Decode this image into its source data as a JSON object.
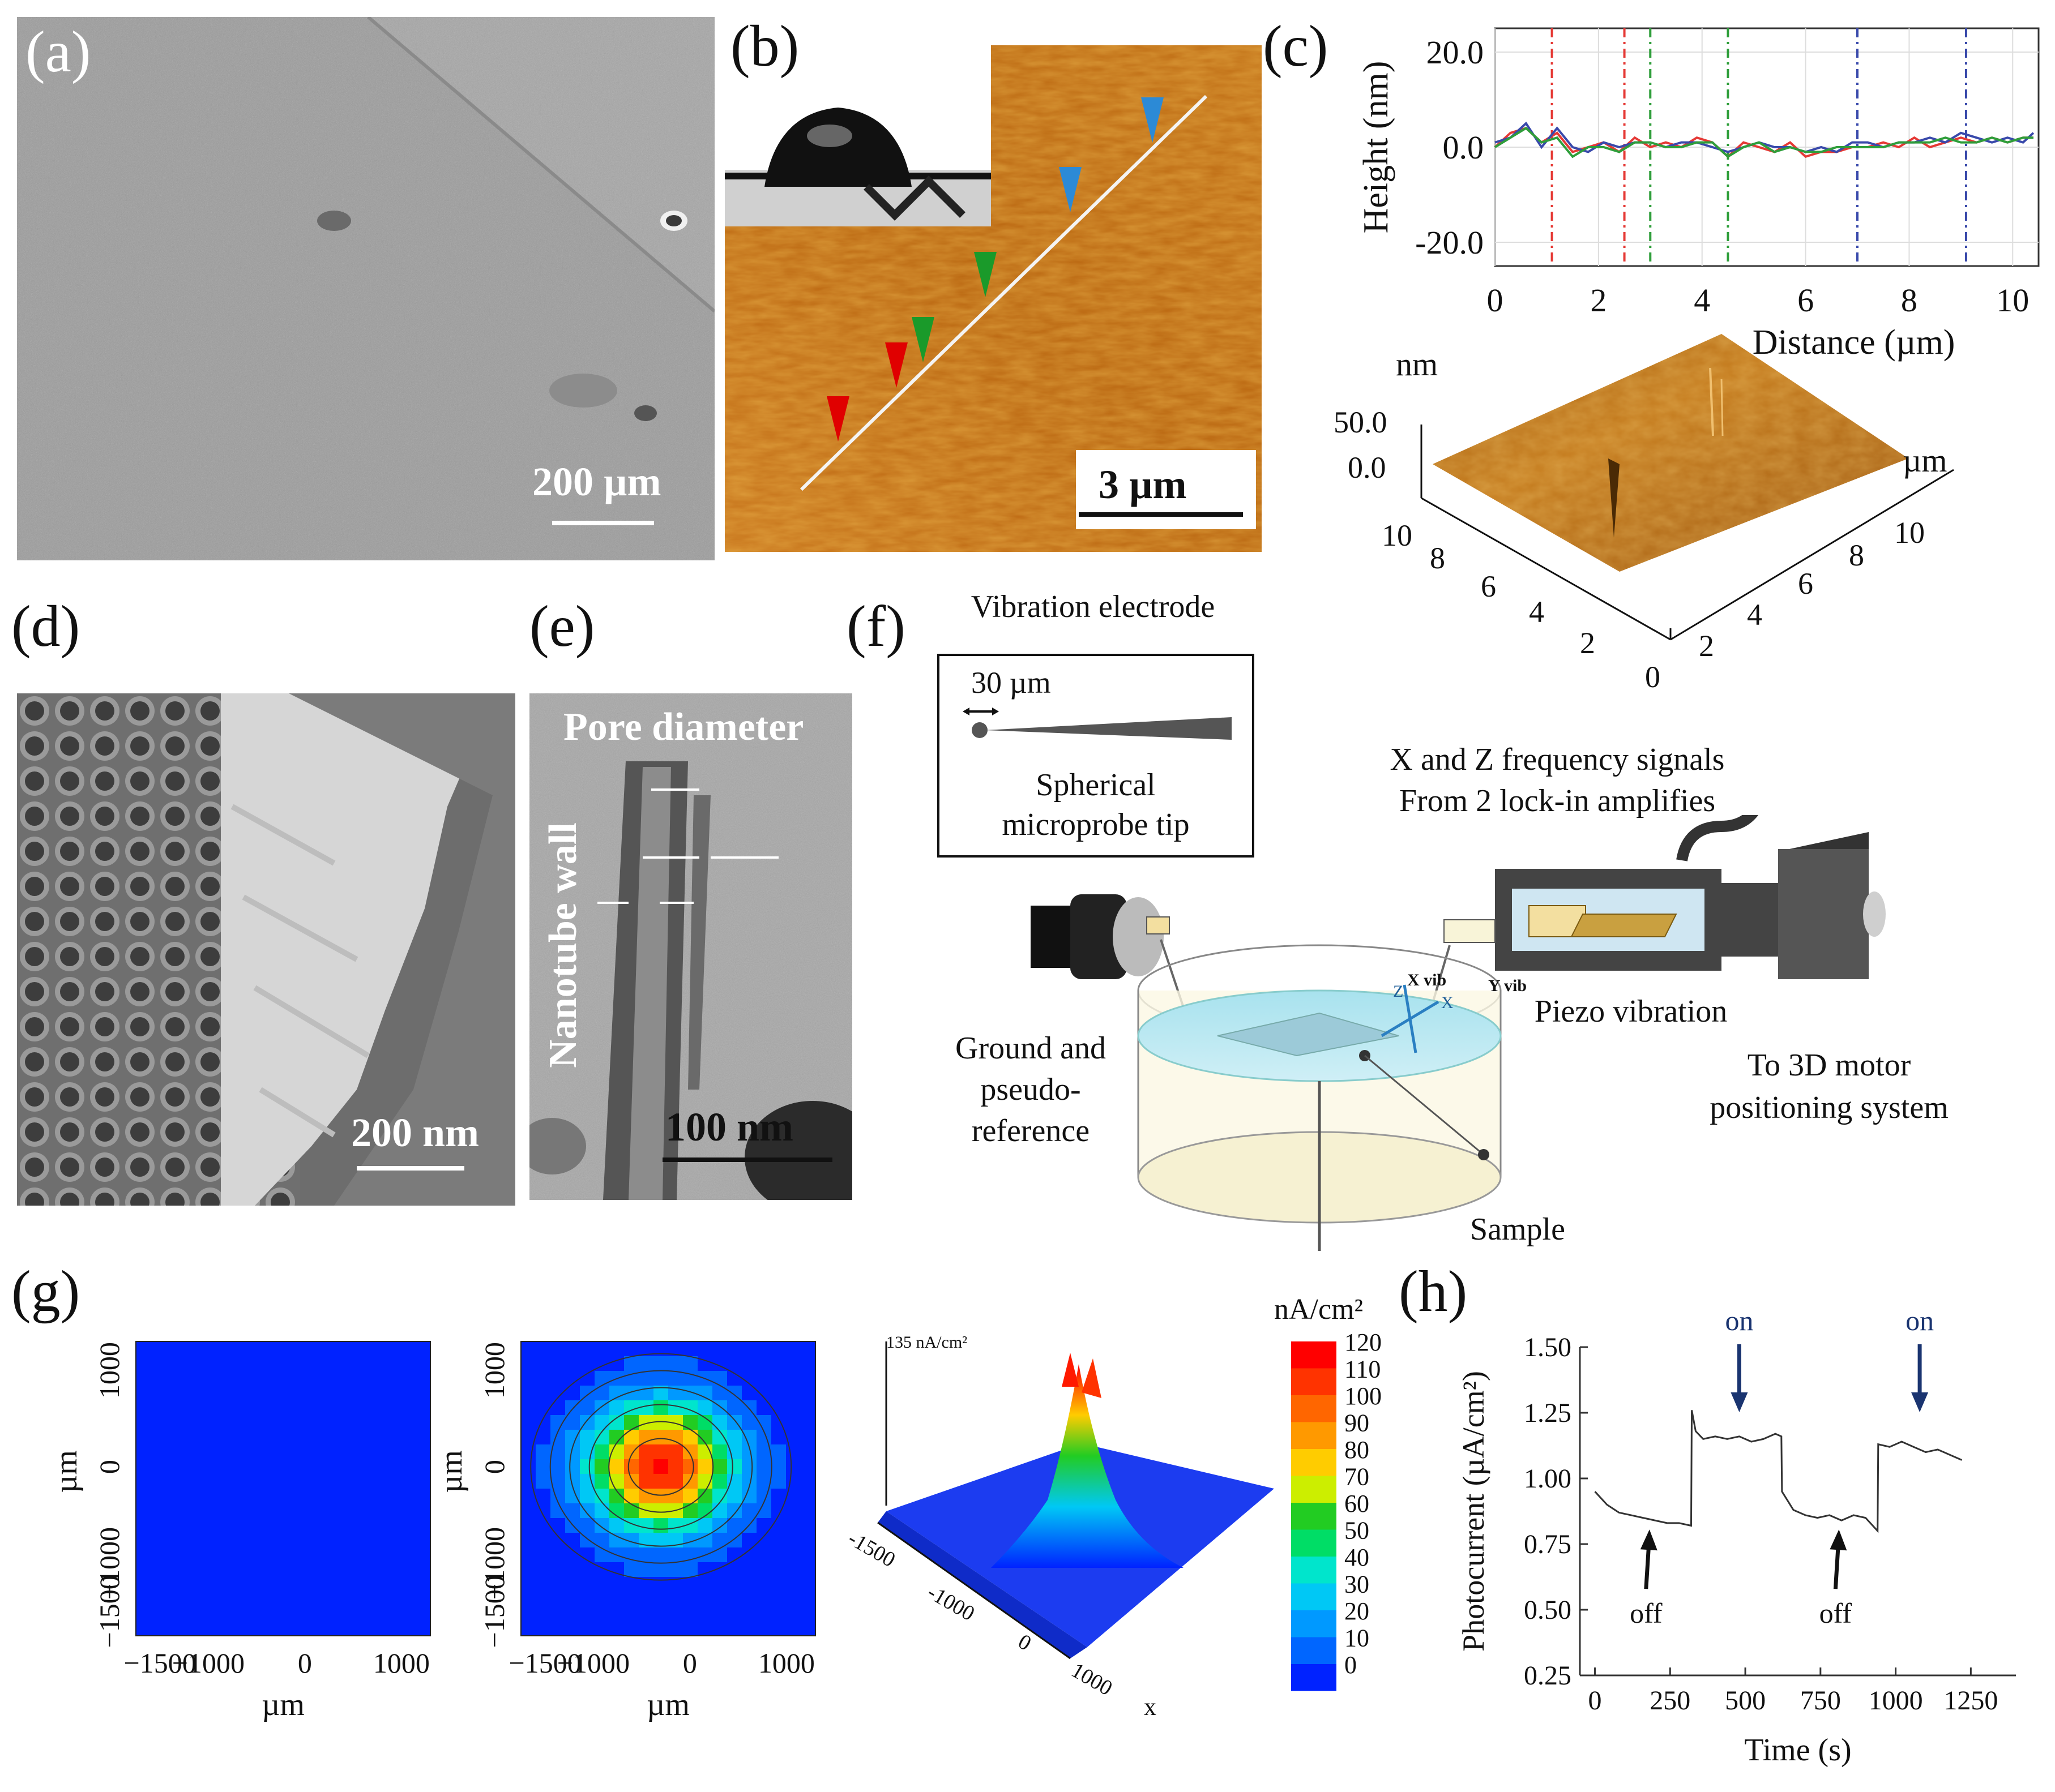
{
  "panels": {
    "a": {
      "label": "(a)",
      "scale": "200 µm"
    },
    "b": {
      "label": "(b)",
      "scale": "3 µm"
    },
    "c": {
      "label": "(c)"
    },
    "d": {
      "label": "(d)",
      "scale": "200 nm"
    },
    "e": {
      "label": "(e)",
      "scale": "100 nm",
      "pore_label": "Pore diameter",
      "wall_label": "Nanotube wall"
    },
    "f": {
      "label": "(f)",
      "title": "Vibration electrode",
      "tip_size": "30 µm",
      "tip_caption_1": "Spherical",
      "tip_caption_2": "microprobe tip",
      "signals_1": "X and Z frequency signals",
      "signals_2": "From 2 lock-in amplifies",
      "x_vib": "X vib",
      "y_vib": "Y vib",
      "axis_z": "Z",
      "axis_x": "X",
      "piezo": "Piezo vibration",
      "motor_1": "To 3D motor",
      "motor_2": "positioning system",
      "ground_1": "Ground and",
      "ground_2": "pseudo-",
      "ground_3": "reference",
      "sample": "Sample"
    },
    "g": {
      "label": "(g)",
      "axis_unit": "µm",
      "peak_label": "135 nA/cm²",
      "surf_x_label": "x",
      "colorbar_title": "nA/cm²"
    },
    "h": {
      "label": "(h)"
    }
  },
  "chart_data": [
    {
      "id": "c-profile",
      "type": "line",
      "title": "",
      "xlabel": "Distance (µm)",
      "ylabel": "Height (nm)",
      "xlim": [
        0,
        10.5
      ],
      "ylim": [
        -25,
        25
      ],
      "xticks": [
        0,
        2,
        4,
        6,
        8,
        10
      ],
      "yticks": [
        20.0,
        0.0,
        -20.0
      ],
      "ytick_labels": [
        "20.0",
        "0.0",
        "-20.0"
      ],
      "grid": true,
      "markers": [
        {
          "x": 1.1,
          "color": "#e53935"
        },
        {
          "x": 2.5,
          "color": "#e53935"
        },
        {
          "x": 3.0,
          "color": "#2e9e3a"
        },
        {
          "x": 4.5,
          "color": "#2e9e3a"
        },
        {
          "x": 7.0,
          "color": "#3949ab"
        },
        {
          "x": 9.1,
          "color": "#3949ab"
        }
      ],
      "series": [
        {
          "name": "red",
          "color": "#e53935",
          "x": [
            0,
            0.3,
            0.6,
            0.9,
            1.2,
            1.5,
            1.8,
            2.1,
            2.4,
            2.7,
            3.0,
            3.3,
            3.6,
            3.9,
            4.2,
            4.5,
            4.8,
            5.1,
            5.4,
            5.7,
            6.0,
            6.3,
            6.6,
            6.9,
            7.2,
            7.5,
            7.8,
            8.1,
            8.4,
            8.7,
            9.0,
            9.3,
            9.6,
            9.9,
            10.2,
            10.4
          ],
          "values": [
            0,
            3,
            4,
            1,
            3,
            -1,
            0,
            1,
            -1,
            2,
            0,
            1,
            0,
            2,
            1,
            -2,
            1,
            0,
            -1,
            1,
            -2,
            -1,
            -1,
            0,
            0,
            1,
            0,
            2,
            0,
            1,
            2,
            1,
            2,
            1,
            2,
            2
          ]
        },
        {
          "name": "blue",
          "color": "#3949ab",
          "x": [
            0,
            0.3,
            0.6,
            0.9,
            1.2,
            1.5,
            1.8,
            2.1,
            2.4,
            2.7,
            3.0,
            3.3,
            3.6,
            3.9,
            4.2,
            4.5,
            4.8,
            5.1,
            5.4,
            5.7,
            6.0,
            6.3,
            6.6,
            6.9,
            7.2,
            7.5,
            7.8,
            8.1,
            8.4,
            8.7,
            9.0,
            9.3,
            9.6,
            9.9,
            10.2,
            10.4
          ],
          "values": [
            1,
            2,
            5,
            0,
            4,
            0,
            -1,
            1,
            0,
            1,
            1,
            0,
            1,
            1,
            0,
            -1,
            0,
            1,
            0,
            0,
            -1,
            0,
            -1,
            1,
            1,
            0,
            1,
            1,
            2,
            1,
            3,
            2,
            1,
            2,
            1,
            3
          ]
        },
        {
          "name": "green",
          "color": "#2e9e3a",
          "x": [
            0,
            0.3,
            0.6,
            0.9,
            1.2,
            1.5,
            1.8,
            2.1,
            2.4,
            2.7,
            3.0,
            3.3,
            3.6,
            3.9,
            4.2,
            4.5,
            4.8,
            5.1,
            5.4,
            5.7,
            6.0,
            6.3,
            6.6,
            6.9,
            7.2,
            7.5,
            7.8,
            8.1,
            8.4,
            8.7,
            9.0,
            9.3,
            9.6,
            9.9,
            10.2,
            10.4
          ],
          "values": [
            0,
            2,
            4,
            1,
            2,
            -2,
            0,
            0,
            -1,
            1,
            1,
            0,
            0,
            1,
            1,
            -2,
            0,
            1,
            -1,
            0,
            -1,
            -1,
            0,
            0,
            0,
            0,
            1,
            1,
            1,
            2,
            1,
            1,
            2,
            1,
            2,
            2
          ]
        }
      ]
    },
    {
      "id": "c-3d",
      "type": "surface",
      "title": "",
      "zlabel": "nm",
      "zticks": [
        "50.0",
        "0.0"
      ],
      "x_unit": "µm",
      "xticks": [
        2,
        4,
        6,
        8,
        10
      ],
      "yticks": [
        10,
        8,
        6,
        4,
        2,
        0
      ]
    },
    {
      "id": "g-map1",
      "type": "heatmap",
      "title": "",
      "xlabel": "µm",
      "ylabel": "µm",
      "xticks": [
        -1500,
        -1000,
        0,
        1000
      ],
      "yticks": [
        1000,
        0,
        -1000,
        -1500
      ],
      "xtick_labels": [
        "−1500",
        "−1000",
        "0",
        "1000"
      ],
      "ytick_labels": [
        "1000",
        "0",
        "−1000",
        "−1500"
      ],
      "peak": 0
    },
    {
      "id": "g-map2",
      "type": "heatmap",
      "title": "",
      "xlabel": "µm",
      "ylabel": "µm",
      "xticks": [
        -1500,
        -1000,
        0,
        1000
      ],
      "yticks": [
        1000,
        0,
        -1000,
        -1500
      ],
      "xtick_labels": [
        "−1500",
        "−1000",
        "0",
        "1000"
      ],
      "ytick_labels": [
        "1000",
        "0",
        "−1000",
        "−1500"
      ],
      "peak": 120,
      "peak_location": [
        -300,
        0
      ]
    },
    {
      "id": "g-surface",
      "type": "surface",
      "title": "",
      "xlabel": "x",
      "xticks": [
        -1500,
        -1000,
        0,
        1000
      ],
      "xtick_labels": [
        "-1500",
        "-1000",
        "0",
        "1000"
      ],
      "peak": 135
    },
    {
      "id": "g-colorbar",
      "type": "colorbar",
      "title": "nA/cm²",
      "ticks": [
        120,
        110,
        100,
        90,
        80,
        70,
        60,
        50,
        40,
        30,
        20,
        10,
        0
      ],
      "colors": [
        "#ff0000",
        "#ff3300",
        "#ff6600",
        "#ff9900",
        "#ffcc00",
        "#ccee00",
        "#22cc22",
        "#00dd66",
        "#00e5cc",
        "#00c8f5",
        "#0099ff",
        "#0066ff",
        "#0022ff"
      ]
    },
    {
      "id": "h-photocurrent",
      "type": "line",
      "title": "",
      "xlabel": "Time (s)",
      "ylabel": "Photocurrent (µA/cm²)",
      "xlim": [
        -50,
        1400
      ],
      "ylim": [
        0.25,
        1.5
      ],
      "xticks": [
        0,
        250,
        500,
        750,
        1000,
        1250
      ],
      "yticks": [
        1.5,
        1.25,
        1.0,
        0.75,
        0.5,
        0.25
      ],
      "ytick_labels": [
        "1.50",
        "1.25",
        "1.00",
        "0.75",
        "0.50",
        "0.25"
      ],
      "series": [
        {
          "name": "photocurrent",
          "color": "#333333",
          "x": [
            0,
            40,
            80,
            120,
            160,
            200,
            240,
            280,
            320,
            322,
            335,
            360,
            400,
            440,
            480,
            520,
            560,
            600,
            620,
            622,
            660,
            700,
            740,
            780,
            820,
            860,
            900,
            940,
            942,
            980,
            1020,
            1060,
            1100,
            1140,
            1180,
            1220
          ],
          "values": [
            0.95,
            0.9,
            0.87,
            0.86,
            0.85,
            0.84,
            0.83,
            0.83,
            0.82,
            1.26,
            1.18,
            1.15,
            1.16,
            1.15,
            1.16,
            1.14,
            1.15,
            1.17,
            1.16,
            0.95,
            0.88,
            0.86,
            0.85,
            0.86,
            0.84,
            0.86,
            0.85,
            0.8,
            1.13,
            1.12,
            1.14,
            1.12,
            1.1,
            1.11,
            1.09,
            1.07
          ]
        }
      ],
      "annotations": [
        {
          "text": "off",
          "x": 170,
          "kind": "off"
        },
        {
          "text": "on",
          "x": 480,
          "kind": "on"
        },
        {
          "text": "off",
          "x": 800,
          "kind": "off"
        },
        {
          "text": "on",
          "x": 1080,
          "kind": "on"
        }
      ]
    }
  ]
}
